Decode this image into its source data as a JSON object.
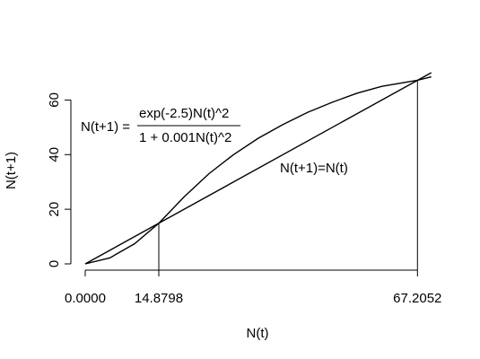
{
  "chart_data": {
    "type": "line",
    "xlabel": "N(t)",
    "ylabel": "N(t+1)",
    "xlim": [
      0,
      70
    ],
    "ylim": [
      0,
      70
    ],
    "x_ticks": [
      "0.0000",
      "14.8798",
      "67.2052"
    ],
    "x_tick_values": [
      0,
      14.8798,
      67.2052
    ],
    "y_ticks": [
      "0",
      "20",
      "40",
      "60"
    ],
    "y_tick_values": [
      0,
      20,
      40,
      60
    ],
    "series": [
      {
        "name": "",
        "x": [
          0,
          5,
          10,
          14.8798,
          20,
          25,
          30,
          35,
          40,
          45,
          50,
          55,
          60,
          67.2052,
          70
        ],
        "y": [
          0,
          2.2,
          7.4,
          14.8798,
          24.5,
          33,
          40,
          46,
          51,
          55.5,
          59.2,
          62.5,
          65,
          67.2052,
          68.5
        ]
      },
      {
        "name": "N(t+1)=N(t)",
        "x": [
          0,
          70
        ],
        "y": [
          0,
          70
        ]
      }
    ],
    "equilibria": [
      14.8798,
      67.2052
    ],
    "annotations": {
      "map_lhs": "N(t+1) =",
      "map_numerator": "exp(-2.5)N(t)^2",
      "map_denominator": "1 + 0.001N(t)^2",
      "identity_label": "N(t+1)=N(t)"
    }
  }
}
